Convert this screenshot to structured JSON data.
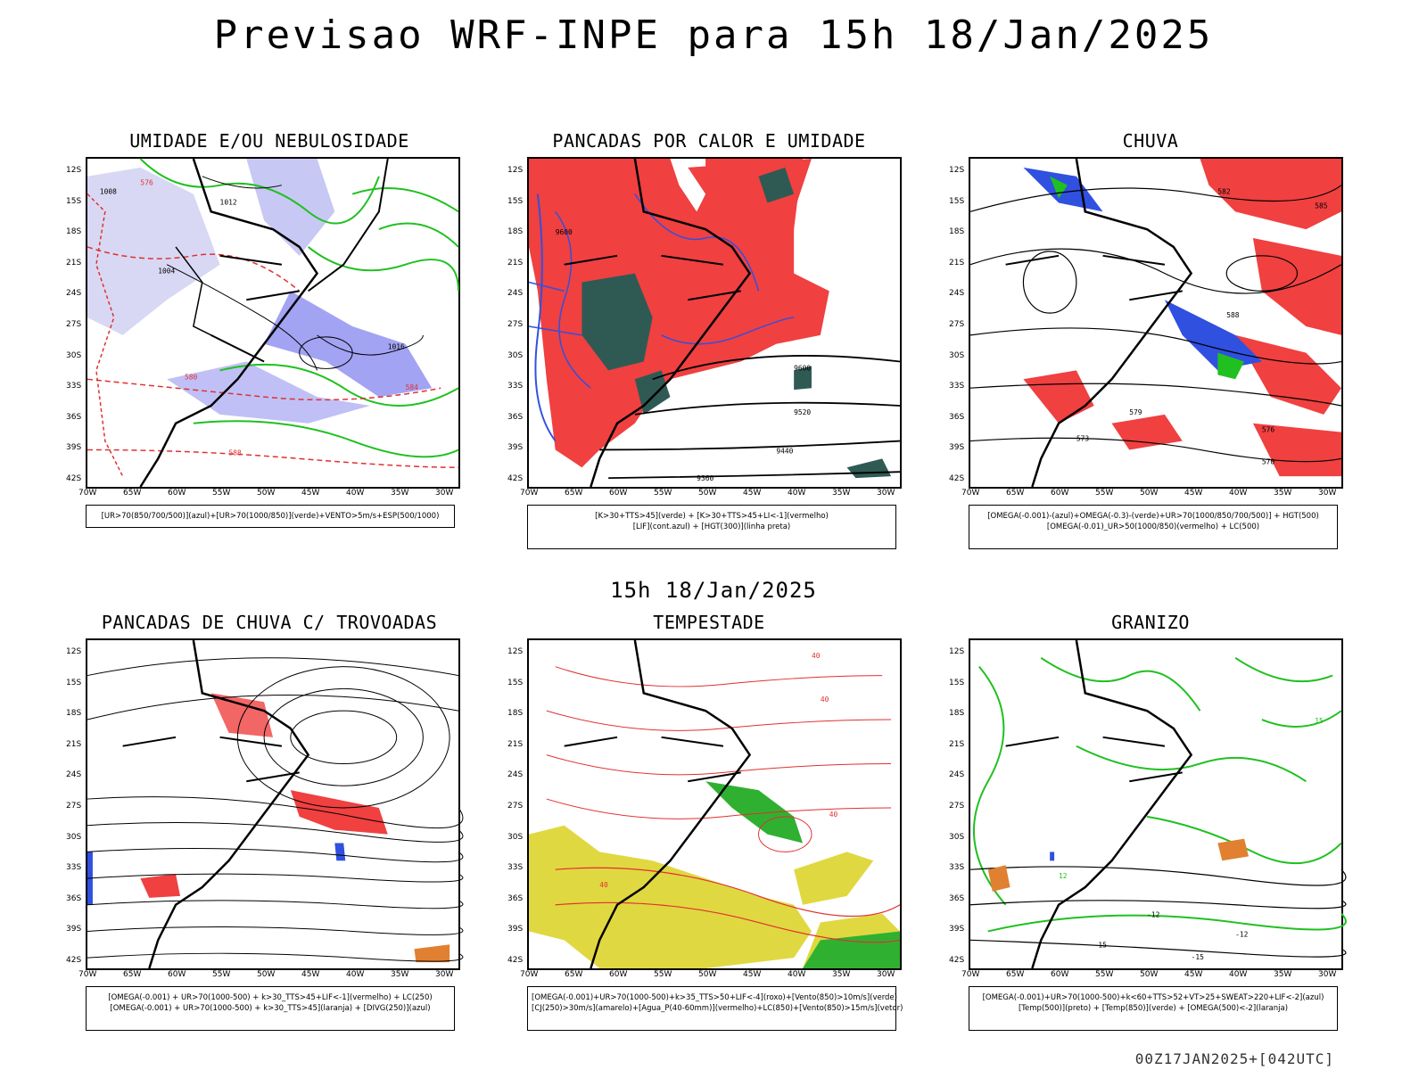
{
  "header": {
    "title": "Previsao WRF-INPE  para 15h 18/Jan/2025",
    "mid_time": "15h 18/Jan/2025",
    "footer": "00Z17JAN2025+[042UTC]"
  },
  "axes": {
    "lat": [
      "12S",
      "15S",
      "18S",
      "21S",
      "24S",
      "27S",
      "30S",
      "33S",
      "36S",
      "39S",
      "42S"
    ],
    "lon": [
      "70W",
      "65W",
      "60W",
      "55W",
      "50W",
      "45W",
      "40W",
      "35W",
      "30W"
    ]
  },
  "colors": {
    "rain_red": "#f04040",
    "dark_green": "#2f5a54",
    "blue": "#3050e0",
    "green": "#20c020",
    "lavender": "#9090f0",
    "yellow": "#e0d840",
    "orange": "#e08030"
  },
  "panels": [
    {
      "title": "UMIDADE E/OU NEBULOSIDADE",
      "legend": [
        "[UR>70(850/700/500)](azul)+[UR>70(1000/850)](verde)+VENTO>5m/s+ESP(500/1000)"
      ]
    },
    {
      "title": "PANCADAS POR CALOR E UMIDADE",
      "legend": [
        "[K>30+TTS>45](verde) + [K>30+TTS>45+LI<-1](vermelho)",
        "[LIF](cont.azul) + [HGT(300)](linha preta)"
      ]
    },
    {
      "title": "CHUVA",
      "legend": [
        "[OMEGA(-0.001)-(azul)+OMEGA(-0.3)-(verde)+UR>70(1000/850/700/500)] + HGT(500)",
        "[OMEGA(-0.01)_UR>50(1000/850)(vermelho) + LC(500)"
      ]
    },
    {
      "title": "PANCADAS DE CHUVA C/ TROVOADAS",
      "legend": [
        "[OMEGA(-0.001) + UR>70(1000-500) + k>30_TTS>45+LIF<-1](vermelho) + LC(250)",
        "[OMEGA(-0.001) + UR>70(1000-500) + k>30_TTS>45](laranja) + [DIVG(250)](azul)"
      ]
    },
    {
      "title": "TEMPESTADE",
      "legend": [
        "[OMEGA(-0.001)+UR>70(1000-500)+k>35_TTS>50+LIF<-4](roxo)+[Vento(850)>10m/s](verde)",
        "[CJ(250)>30m/s](amarelo)+[Agua_P(40-60mm)](vermelho)+LC(850)+[Vento(850)>15m/s](vetor)"
      ]
    },
    {
      "title": "GRANIZO",
      "legend": [
        "[OMEGA(-0.001)+UR>70(1000-500)+k<60+TTS>52+VT>25+SWEAT>220+LIF<-2](azul)",
        "[Temp(500)](preto) + [Temp(850)](verde) + [OMEGA(500)<-2](laranja)"
      ]
    }
  ],
  "map_labels": {
    "p1": [
      "1008",
      "1012",
      "1004",
      "1016",
      "576",
      "580",
      "584",
      "588"
    ],
    "p2": [
      "9600",
      "9520",
      "9440",
      "9360"
    ],
    "p3": [
      "582",
      "585",
      "588",
      "576",
      "573",
      "570",
      "579"
    ],
    "p5": [
      "40"
    ],
    "p6": [
      "-12",
      "-15",
      "15",
      "12"
    ]
  }
}
